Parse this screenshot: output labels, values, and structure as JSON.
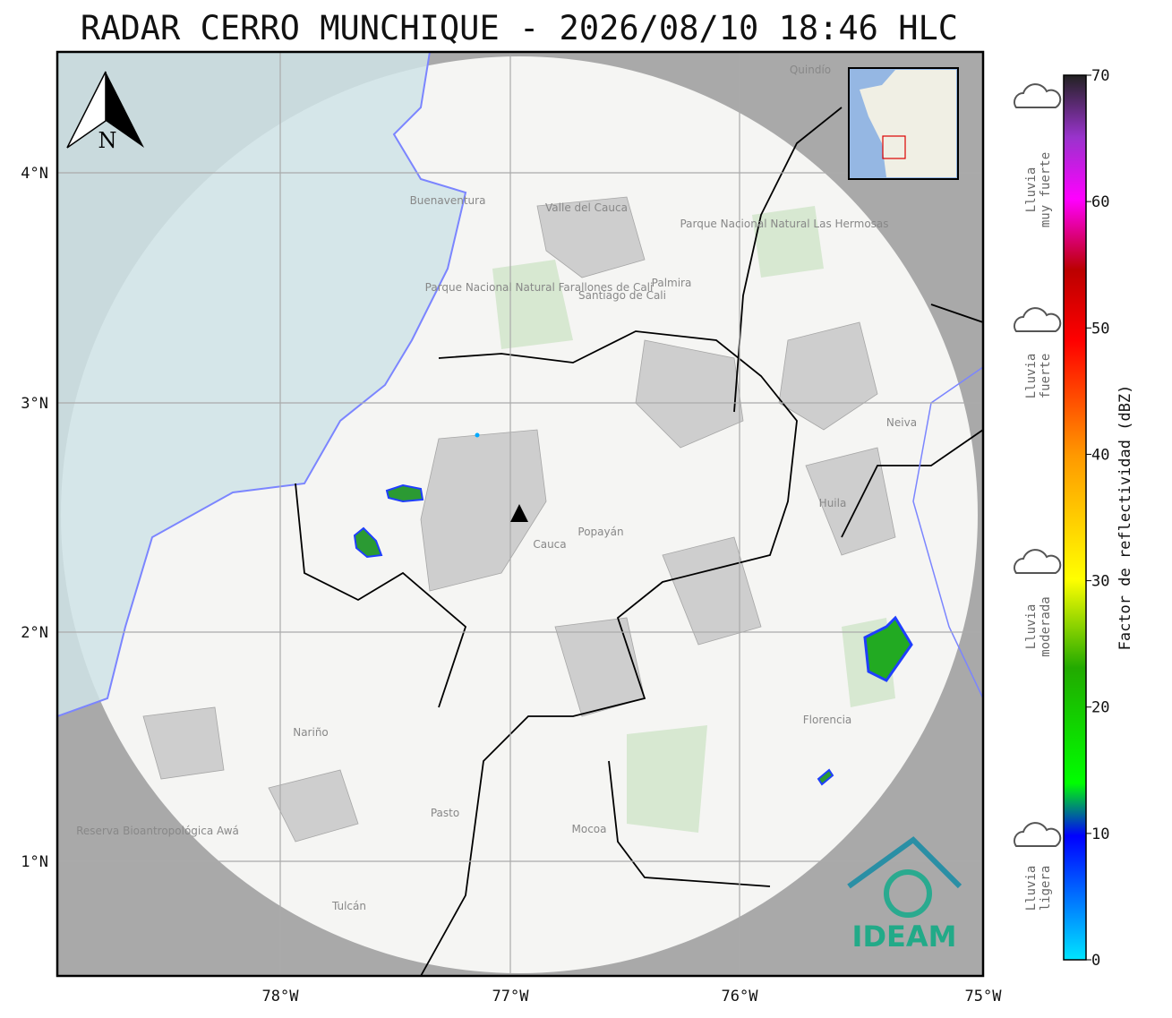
{
  "title": "RADAR CERRO MUNCHIQUE - 2026/08/10 18:46 HLC",
  "map": {
    "lon_ticks": [
      "78°W",
      "77°W",
      "76°W",
      "75°W"
    ],
    "lat_ticks": [
      "4°N",
      "3°N",
      "2°N",
      "1°N"
    ],
    "north": "N",
    "logo": "IDEAM",
    "places": [
      "Buenaventura",
      "Valle del Cauca",
      "Palmira",
      "Santiago de Cali",
      "Parque Nacional Natural Farallones de Cali",
      "Parque Nacional Natural Las Hermosas",
      "Quindío",
      "Neiva",
      "Huila",
      "Cauca",
      "Popayán",
      "Nariño",
      "Pasto",
      "Mocoa",
      "Florencia",
      "Tulcán",
      "Reserva Bioantropológica Awá"
    ]
  },
  "colorbar": {
    "label": "Factor de reflectividad (dBZ)",
    "ticks": [
      0,
      10,
      20,
      30,
      40,
      50,
      60,
      70
    ],
    "categories": [
      [
        "Lluvia",
        "muy fuerte"
      ],
      [
        "Lluvia",
        "fuerte"
      ],
      [
        "Lluvia",
        "moderada"
      ],
      [
        "Lluvia",
        "ligera"
      ]
    ]
  }
}
